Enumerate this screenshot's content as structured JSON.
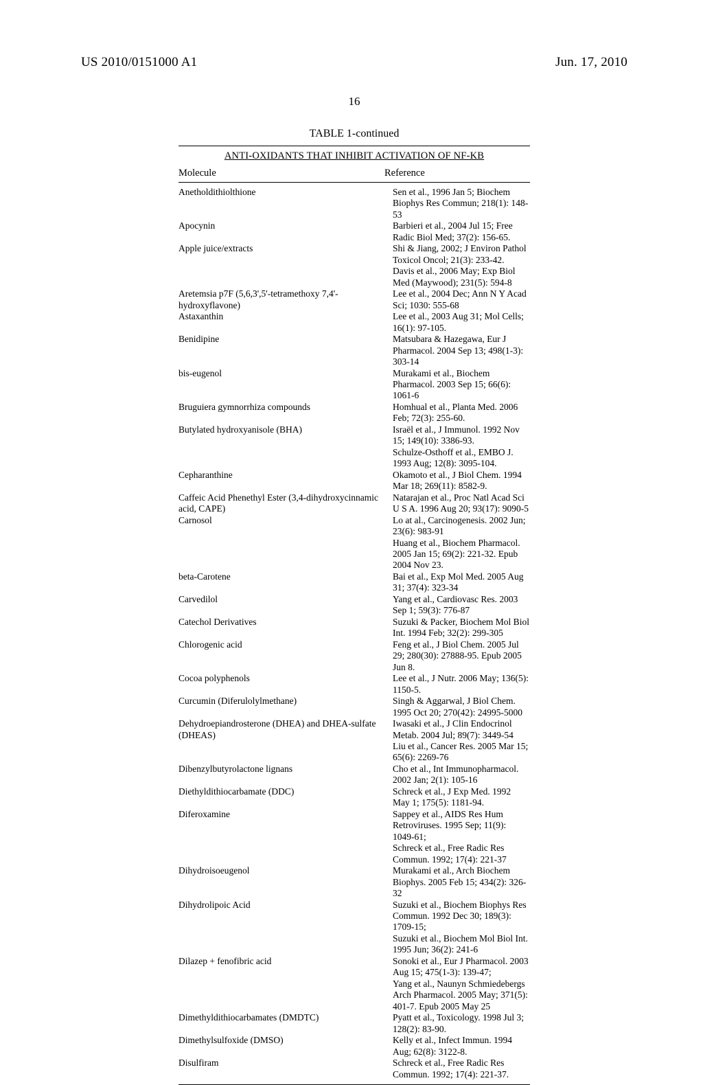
{
  "header": {
    "left": "US 2010/0151000 A1",
    "right": "Jun. 17, 2010"
  },
  "page_number": "16",
  "table": {
    "caption": "TABLE 1-continued",
    "subtitle": "ANTI-OXIDANTS THAT INHIBIT ACTIVATION OF NF-KB",
    "columns": {
      "molecule": "Molecule",
      "reference": "Reference"
    },
    "rows": [
      {
        "m": "Anetholdithiolthione",
        "r": "Sen et al., 1996 Jan 5; Biochem Biophys Res Commun; 218(1): 148-53"
      },
      {
        "m": "Apocynin",
        "r": "Barbieri et al., 2004 Jul 15; Free Radic Biol Med; 37(2): 156-65."
      },
      {
        "m": "Apple juice/extracts",
        "r": "Shi & Jiang, 2002; J Environ Pathol Toxicol Oncol; 21(3): 233-42.\nDavis et al., 2006 May; Exp Biol Med (Maywood); 231(5): 594-8"
      },
      {
        "m": "Aretemsia p7F (5,6,3',5'-tetramethoxy 7,4'-hydroxyflavone)",
        "r": "Lee et al., 2004 Dec; Ann N Y Acad Sci; 1030: 555-68"
      },
      {
        "m": "Astaxanthin",
        "r": "Lee et al., 2003 Aug 31; Mol Cells; 16(1): 97-105."
      },
      {
        "m": "Benidipine",
        "r": "Matsubara & Hazegawa, Eur J Pharmacol. 2004 Sep 13; 498(1-3): 303-14"
      },
      {
        "m": "bis-eugenol",
        "r": "Murakami et al., Biochem Pharmacol. 2003 Sep 15; 66(6): 1061-6"
      },
      {
        "m": "Bruguiera gymnorrhiza compounds",
        "r": "Homhual et al., Planta Med. 2006 Feb; 72(3): 255-60."
      },
      {
        "m": "Butylated hydroxyanisole (BHA)",
        "r": "Israël et al., J Immunol. 1992 Nov 15; 149(10): 3386-93.\nSchulze-Osthoff et al., EMBO J. 1993 Aug; 12(8): 3095-104."
      },
      {
        "m": "Cepharanthine",
        "r": "Okamoto et al., J Biol Chem. 1994 Mar 18; 269(11): 8582-9."
      },
      {
        "m": "Caffeic Acid Phenethyl Ester (3,4-dihydroxycinnamic acid, CAPE)",
        "r": "Natarajan et al., Proc Natl Acad Sci U S A. 1996 Aug 20; 93(17): 9090-5"
      },
      {
        "m": "Carnosol",
        "r": "Lo at al., Carcinogenesis. 2002 Jun; 23(6): 983-91\nHuang et al., Biochem Pharmacol. 2005 Jan 15; 69(2): 221-32. Epub 2004 Nov 23."
      },
      {
        "m": "beta-Carotene",
        "r": "Bai et al., Exp Mol Med. 2005 Aug 31; 37(4): 323-34"
      },
      {
        "m": "Carvedilol",
        "r": "Yang et al., Cardiovasc Res. 2003 Sep 1; 59(3): 776-87"
      },
      {
        "m": "Catechol Derivatives",
        "r": "Suzuki & Packer, Biochem Mol Biol Int. 1994 Feb; 32(2): 299-305"
      },
      {
        "m": "Chlorogenic acid",
        "r": "Feng et al., J Biol Chem. 2005 Jul 29; 280(30): 27888-95. Epub 2005 Jun 8."
      },
      {
        "m": "Cocoa polyphenols",
        "r": "Lee et al., J Nutr. 2006 May; 136(5): 1150-5."
      },
      {
        "m": "Curcumin (Diferulolylmethane)",
        "r": "Singh & Aggarwal, J Biol Chem. 1995 Oct 20; 270(42): 24995-5000"
      },
      {
        "m": "Dehydroepiandrosterone (DHEA) and DHEA-sulfate (DHEAS)",
        "r": "Iwasaki et al., J Clin Endocrinol Metab. 2004 Jul; 89(7): 3449-54\nLiu et al., Cancer Res. 2005 Mar 15; 65(6): 2269-76"
      },
      {
        "m": "Dibenzylbutyrolactone lignans",
        "r": "Cho et al., Int Immunopharmacol. 2002 Jan; 2(1): 105-16"
      },
      {
        "m": "Diethyldithiocarbamate (DDC)",
        "r": "Schreck et al., J Exp Med. 1992 May 1; 175(5): 1181-94."
      },
      {
        "m": "Diferoxamine",
        "r": "Sappey et al., AIDS Res Hum Retroviruses. 1995 Sep; 11(9): 1049-61;\nSchreck et al., Free Radic Res Commun. 1992; 17(4): 221-37"
      },
      {
        "m": "Dihydroisoeugenol",
        "r": "Murakami et al., Arch Biochem Biophys. 2005 Feb 15; 434(2): 326-32"
      },
      {
        "m": "Dihydrolipoic Acid",
        "r": "Suzuki et al., Biochem Biophys Res Commun. 1992 Dec 30; 189(3): 1709-15;\nSuzuki et al., Biochem Mol Biol Int. 1995 Jun; 36(2): 241-6"
      },
      {
        "m": "Dilazep + fenofibric acid",
        "r": "Sonoki et al., Eur J Pharmacol. 2003 Aug 15; 475(1-3): 139-47;\nYang et al., Naunyn Schmiedebergs Arch Pharmacol. 2005 May; 371(5): 401-7. Epub 2005 May 25"
      },
      {
        "m": "Dimethyldithiocarbamates (DMDTC)",
        "r": "Pyatt et al., Toxicology. 1998 Jul 3; 128(2): 83-90."
      },
      {
        "m": "Dimethylsulfoxide (DMSO)",
        "r": "Kelly et al., Infect Immun. 1994 Aug; 62(8): 3122-8."
      },
      {
        "m": "Disulfiram",
        "r": "Schreck et al., Free Radic Res Commun. 1992; 17(4): 221-37."
      }
    ]
  }
}
